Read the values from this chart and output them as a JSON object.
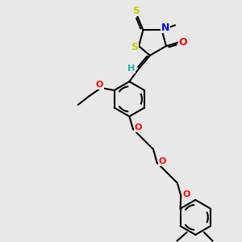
{
  "bg_color": "#e8e8e8",
  "atom_colors": {
    "S": "#cccc00",
    "N": "#0000ff",
    "O": "#ff0000",
    "C": "#000000",
    "H": "#20b2aa"
  },
  "bond_color": "#000000",
  "bond_width": 1.5,
  "figsize": [
    3.0,
    3.0
  ],
  "dpi": 100,
  "xlim": [
    0,
    10
  ],
  "ylim": [
    0,
    10
  ]
}
